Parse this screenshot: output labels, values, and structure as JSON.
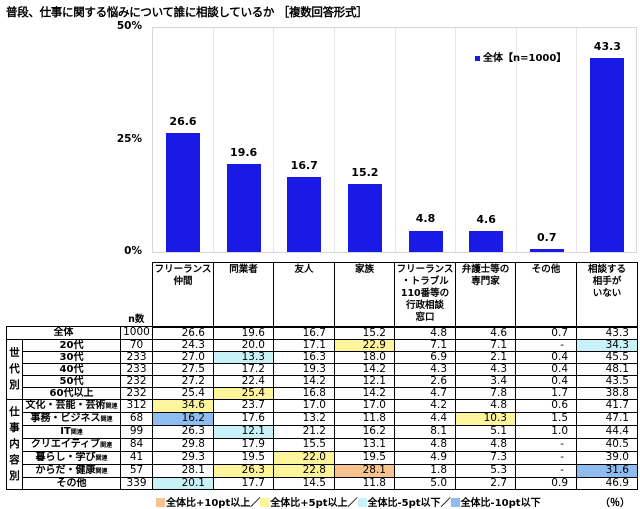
{
  "title": "普段、仕事に関する悩みについて誰に相談しているか ［複数回答形式］",
  "chart_data": {
    "type": "bar",
    "title": "普段、仕事に関する悩みについて誰に相談しているか ［複数回答形式］",
    "categories": [
      "フリーランス仲間",
      "同業者",
      "友人",
      "家族",
      "フリーランス・トラブル110番等の行政相談窓口",
      "弁護士等の専門家",
      "その他",
      "相談する相手がいない"
    ],
    "series": [
      {
        "name": "全体【n=1000】",
        "values": [
          26.6,
          19.6,
          16.7,
          15.2,
          4.8,
          4.6,
          0.7,
          43.3
        ]
      }
    ],
    "ylim": [
      0,
      50
    ],
    "yticks": [
      "0%",
      "25%",
      "50%"
    ],
    "legend_position": "top-right",
    "grid": "vertical separators",
    "bar_color": "#1a1ae6"
  },
  "chart": {
    "yticks": {
      "t50": "50%",
      "t25": "25%",
      "t0": "0%"
    },
    "legend": "全体【n=1000】",
    "labels": [
      "26.6",
      "19.6",
      "16.7",
      "15.2",
      "4.8",
      "4.6",
      "0.7",
      "43.3"
    ]
  },
  "table": {
    "n_header": "n数",
    "columns": [
      [
        "フリーランス",
        "仲間"
      ],
      [
        "同業者"
      ],
      [
        "友人"
      ],
      [
        "家族"
      ],
      [
        "フリーランス",
        "・トラブル",
        "110番等の",
        "行政相談",
        "窓口"
      ],
      [
        "弁護士等の",
        "専門家"
      ],
      [
        "その他"
      ],
      [
        "相談する",
        "相手が",
        "いない"
      ]
    ],
    "total": {
      "label": "全体",
      "n": "1000",
      "values": [
        "26.6",
        "19.6",
        "16.7",
        "15.2",
        "4.8",
        "4.6",
        "0.7",
        "43.3"
      ]
    },
    "groups": [
      {
        "name": "世代別",
        "rows": [
          {
            "label": "20代",
            "suffix": "",
            "n": "70",
            "values": [
              "24.3",
              "20.0",
              "17.1",
              "22.9",
              "7.1",
              "7.1",
              "-",
              "34.3"
            ],
            "hl": [
              "",
              "",
              "",
              "y",
              "",
              "",
              "",
              "lb"
            ]
          },
          {
            "label": "30代",
            "suffix": "",
            "n": "233",
            "values": [
              "27.0",
              "13.3",
              "16.3",
              "18.0",
              "6.9",
              "2.1",
              "0.4",
              "45.5"
            ],
            "hl": [
              "",
              "lb",
              "",
              "",
              "",
              "",
              "",
              ""
            ]
          },
          {
            "label": "40代",
            "suffix": "",
            "n": "233",
            "values": [
              "27.5",
              "17.2",
              "19.3",
              "14.2",
              "4.3",
              "4.3",
              "0.4",
              "48.1"
            ],
            "hl": [
              "",
              "",
              "",
              "",
              "",
              "",
              "",
              ""
            ]
          },
          {
            "label": "50代",
            "suffix": "",
            "n": "232",
            "values": [
              "27.2",
              "22.4",
              "14.2",
              "12.1",
              "2.6",
              "3.4",
              "0.4",
              "43.5"
            ],
            "hl": [
              "",
              "",
              "",
              "",
              "",
              "",
              "",
              ""
            ]
          },
          {
            "label": "60代以上",
            "suffix": "",
            "n": "232",
            "values": [
              "25.4",
              "25.4",
              "16.8",
              "14.2",
              "4.7",
              "7.8",
              "1.7",
              "38.8"
            ],
            "hl": [
              "",
              "y",
              "",
              "",
              "",
              "",
              "",
              ""
            ]
          }
        ]
      },
      {
        "name": "仕事内容別",
        "rows": [
          {
            "label": "文化・芸能・芸術",
            "suffix": "関連",
            "n": "312",
            "values": [
              "34.6",
              "23.7",
              "17.0",
              "17.0",
              "4.2",
              "4.8",
              "0.6",
              "41.7"
            ],
            "hl": [
              "y",
              "",
              "",
              "",
              "",
              "",
              "",
              ""
            ]
          },
          {
            "label": "事務・ビジネス",
            "suffix": "関連",
            "n": "68",
            "values": [
              "16.2",
              "17.6",
              "13.2",
              "11.8",
              "4.4",
              "10.3",
              "1.5",
              "47.1"
            ],
            "hl": [
              "mb",
              "",
              "",
              "",
              "",
              "y",
              "",
              ""
            ]
          },
          {
            "label": "IT",
            "suffix": "関連",
            "n": "99",
            "values": [
              "26.3",
              "12.1",
              "21.2",
              "16.2",
              "8.1",
              "5.1",
              "1.0",
              "44.4"
            ],
            "hl": [
              "",
              "lb",
              "",
              "",
              "",
              "",
              "",
              ""
            ]
          },
          {
            "label": "クリエイティブ",
            "suffix": "関連",
            "n": "84",
            "values": [
              "29.8",
              "17.9",
              "15.5",
              "13.1",
              "4.8",
              "4.8",
              "-",
              "40.5"
            ],
            "hl": [
              "",
              "",
              "",
              "",
              "",
              "",
              "",
              ""
            ]
          },
          {
            "label": "暮らし・学び",
            "suffix": "関連",
            "n": "41",
            "values": [
              "29.3",
              "19.5",
              "22.0",
              "19.5",
              "4.9",
              "7.3",
              "-",
              "39.0"
            ],
            "hl": [
              "",
              "",
              "y",
              "",
              "",
              "",
              "",
              ""
            ]
          },
          {
            "label": "からだ・健康",
            "suffix": "関連",
            "n": "57",
            "values": [
              "28.1",
              "26.3",
              "22.8",
              "28.1",
              "1.8",
              "5.3",
              "-",
              "31.6"
            ],
            "hl": [
              "",
              "y",
              "y",
              "o",
              "",
              "",
              "",
              "mb"
            ]
          },
          {
            "label": "その他",
            "suffix": "",
            "n": "339",
            "values": [
              "20.1",
              "17.7",
              "14.5",
              "11.8",
              "5.0",
              "2.7",
              "0.9",
              "46.9"
            ],
            "hl": [
              "lb",
              "",
              "",
              "",
              "",
              "",
              "",
              ""
            ]
          }
        ]
      }
    ]
  },
  "footer": {
    "legend": [
      {
        "label": "全体比+10pt以上",
        "color": "#f8c28f"
      },
      {
        "label": "全体比+5pt以上",
        "color": "#fdf49b"
      },
      {
        "label": "全体比-5pt以下",
        "color": "#c9f1f8"
      },
      {
        "label": "全体比-10pt以下",
        "color": "#8ebcf0"
      }
    ],
    "separator": "／",
    "unit": "（％）"
  }
}
